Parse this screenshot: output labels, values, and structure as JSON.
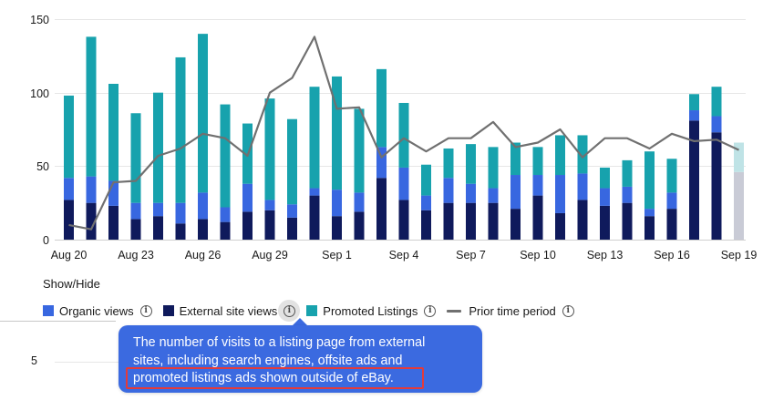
{
  "chart_data": {
    "type": "bar",
    "stacked": true,
    "ylim": [
      0,
      150
    ],
    "y_ticks": [
      0,
      50,
      100,
      150
    ],
    "categories": [
      "Aug 20",
      "Aug 21",
      "Aug 22",
      "Aug 23",
      "Aug 24",
      "Aug 25",
      "Aug 26",
      "Aug 27",
      "Aug 28",
      "Aug 29",
      "Aug 30",
      "Aug 31",
      "Sep 1",
      "Sep 2",
      "Sep 3",
      "Sep 4",
      "Sep 5",
      "Sep 6",
      "Sep 7",
      "Sep 8",
      "Sep 9",
      "Sep 10",
      "Sep 11",
      "Sep 12",
      "Sep 13",
      "Sep 14",
      "Sep 15",
      "Sep 16",
      "Sep 17",
      "Sep 18",
      "Sep 19"
    ],
    "x_tick_labels": [
      {
        "index": 0,
        "label": "Aug 20"
      },
      {
        "index": 3,
        "label": "Aug 23"
      },
      {
        "index": 6,
        "label": "Aug 26"
      },
      {
        "index": 9,
        "label": "Aug 29"
      },
      {
        "index": 12,
        "label": "Sep 1"
      },
      {
        "index": 15,
        "label": "Sep 4"
      },
      {
        "index": 18,
        "label": "Sep 7"
      },
      {
        "index": 21,
        "label": "Sep 10"
      },
      {
        "index": 24,
        "label": "Sep 13"
      },
      {
        "index": 27,
        "label": "Sep 16"
      },
      {
        "index": 30,
        "label": "Sep 19"
      }
    ],
    "series": [
      {
        "name": "External site views",
        "color": "#0f1a5c",
        "values": [
          27,
          25,
          23,
          14,
          16,
          11,
          14,
          12,
          19,
          20,
          15,
          30,
          16,
          19,
          42,
          27,
          20,
          25,
          25,
          25,
          21,
          30,
          18,
          27,
          23,
          25,
          16,
          21,
          81,
          73,
          46
        ]
      },
      {
        "name": "Organic views",
        "color": "#3867e0",
        "values": [
          15,
          18,
          17,
          11,
          9,
          14,
          18,
          10,
          19,
          7,
          9,
          5,
          18,
          13,
          21,
          22,
          10,
          17,
          13,
          10,
          23,
          14,
          26,
          18,
          12,
          11,
          5,
          11,
          7,
          11,
          0
        ]
      },
      {
        "name": "Promoted Listings",
        "color": "#17a2ad",
        "values": [
          56,
          95,
          66,
          61,
          75,
          99,
          108,
          70,
          41,
          69,
          58,
          69,
          77,
          57,
          53,
          44,
          21,
          20,
          27,
          28,
          22,
          19,
          27,
          26,
          14,
          18,
          39,
          23,
          11,
          20,
          20
        ]
      }
    ],
    "prior_time_period": {
      "name": "Prior time period",
      "color": "#707070",
      "values": [
        10,
        7,
        39,
        40,
        57,
        62,
        72,
        69,
        57,
        100,
        110,
        138,
        89,
        90,
        56,
        69,
        60,
        69,
        69,
        80,
        63,
        66,
        75,
        56,
        69,
        69,
        62,
        72,
        67,
        68,
        61
      ]
    },
    "faded_last_bar": true,
    "grid": true,
    "legend_position": "bottom-left"
  },
  "controls": {
    "show_hide_label": "Show/Hide"
  },
  "legend": [
    {
      "label": "Organic views",
      "color": "#3867e0",
      "kind": "square",
      "info_icon": "info-icon"
    },
    {
      "label": "External site views",
      "color": "#0f1a5c",
      "kind": "square",
      "info_icon": "info-icon",
      "hovered": true
    },
    {
      "label": "Promoted Listings",
      "color": "#17a2ad",
      "kind": "square",
      "info_icon": "info-icon"
    },
    {
      "label": "Prior time period",
      "color": "#707070",
      "kind": "line",
      "info_icon": "info-icon"
    }
  ],
  "tooltip": {
    "line1": "The number of visits to a listing page from external",
    "line2": "sites, including search engines, offsite ads and",
    "line3": "promoted listings ads shown outside of eBay.",
    "highlighted_line": 3,
    "background": "#3b6ae0",
    "highlight_color": "#e23b3b"
  },
  "lower_chart": {
    "tick_label": "5"
  }
}
